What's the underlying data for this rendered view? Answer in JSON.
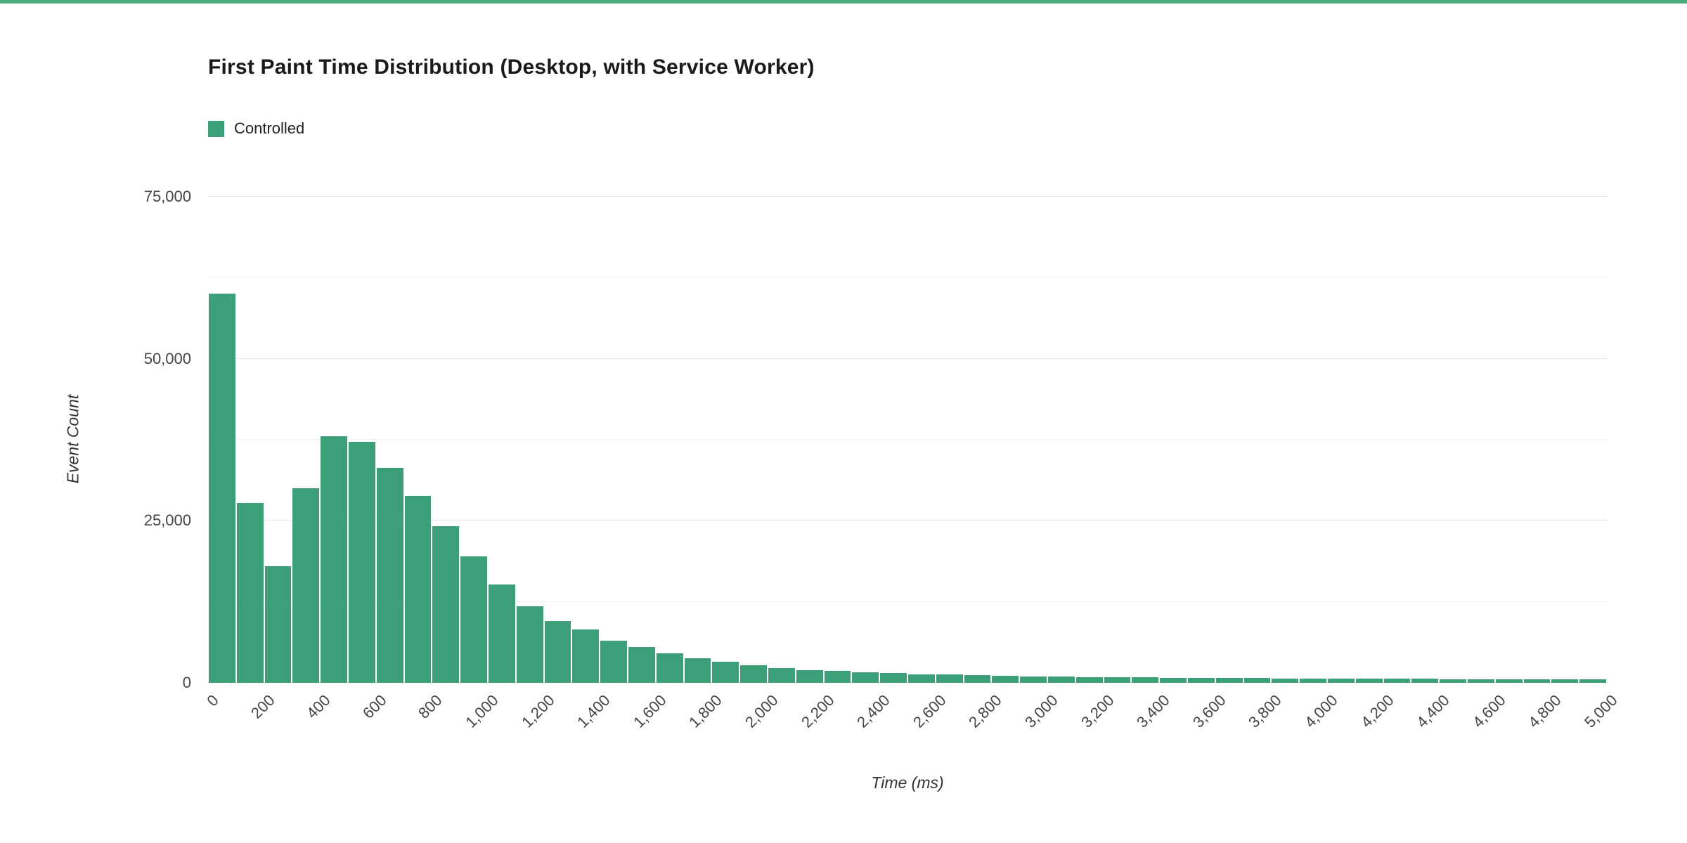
{
  "page": {
    "top_border_color": "#4bae7d",
    "background_color": "#ffffff"
  },
  "chart_data": {
    "type": "bar",
    "chart_kind": "histogram",
    "title": "First Paint Time Distribution (Desktop, with Service Worker)",
    "legend_label": "Controlled",
    "legend_position": "top-left",
    "series_color": "#3ba077",
    "gridline_color": "#e3e3e3",
    "minor_gridline_color": "#f1f1f1",
    "xlabel": "Time (ms)",
    "ylabel": "Event Count",
    "xlim": [
      0,
      5000
    ],
    "ylim": [
      0,
      75000
    ],
    "bin_width_ms": 100,
    "grid": true,
    "yticks": [
      {
        "value": 0,
        "label": "0"
      },
      {
        "value": 25000,
        "label": "25,000"
      },
      {
        "value": 50000,
        "label": "50,000"
      },
      {
        "value": 75000,
        "label": "75,000"
      }
    ],
    "minor_gridline_values": [
      12500,
      37500,
      62500
    ],
    "xticks": [
      {
        "value": 0,
        "label": "0"
      },
      {
        "value": 200,
        "label": "200"
      },
      {
        "value": 400,
        "label": "400"
      },
      {
        "value": 600,
        "label": "600"
      },
      {
        "value": 800,
        "label": "800"
      },
      {
        "value": 1000,
        "label": "1,000"
      },
      {
        "value": 1200,
        "label": "1,200"
      },
      {
        "value": 1400,
        "label": "1,400"
      },
      {
        "value": 1600,
        "label": "1,600"
      },
      {
        "value": 1800,
        "label": "1,800"
      },
      {
        "value": 2000,
        "label": "2,000"
      },
      {
        "value": 2200,
        "label": "2,200"
      },
      {
        "value": 2400,
        "label": "2,400"
      },
      {
        "value": 2600,
        "label": "2,600"
      },
      {
        "value": 2800,
        "label": "2,800"
      },
      {
        "value": 3000,
        "label": "3,000"
      },
      {
        "value": 3200,
        "label": "3,200"
      },
      {
        "value": 3400,
        "label": "3,400"
      },
      {
        "value": 3600,
        "label": "3,600"
      },
      {
        "value": 3800,
        "label": "3,800"
      },
      {
        "value": 4000,
        "label": "4,000"
      },
      {
        "value": 4200,
        "label": "4,200"
      },
      {
        "value": 4400,
        "label": "4,400"
      },
      {
        "value": 4600,
        "label": "4,600"
      },
      {
        "value": 4800,
        "label": "4,800"
      },
      {
        "value": 5000,
        "label": "5,000"
      }
    ],
    "values": [
      60000,
      27700,
      18000,
      30000,
      38000,
      37200,
      33200,
      28800,
      24200,
      19500,
      15200,
      11800,
      9500,
      8200,
      6500,
      5500,
      4500,
      3800,
      3200,
      2700,
      2300,
      2000,
      1800,
      1600,
      1500,
      1350,
      1250,
      1150,
      1080,
      1000,
      950,
      900,
      860,
      830,
      800,
      780,
      750,
      730,
      700,
      680,
      650,
      640,
      650,
      600,
      580,
      560,
      550,
      530,
      520,
      500
    ]
  }
}
